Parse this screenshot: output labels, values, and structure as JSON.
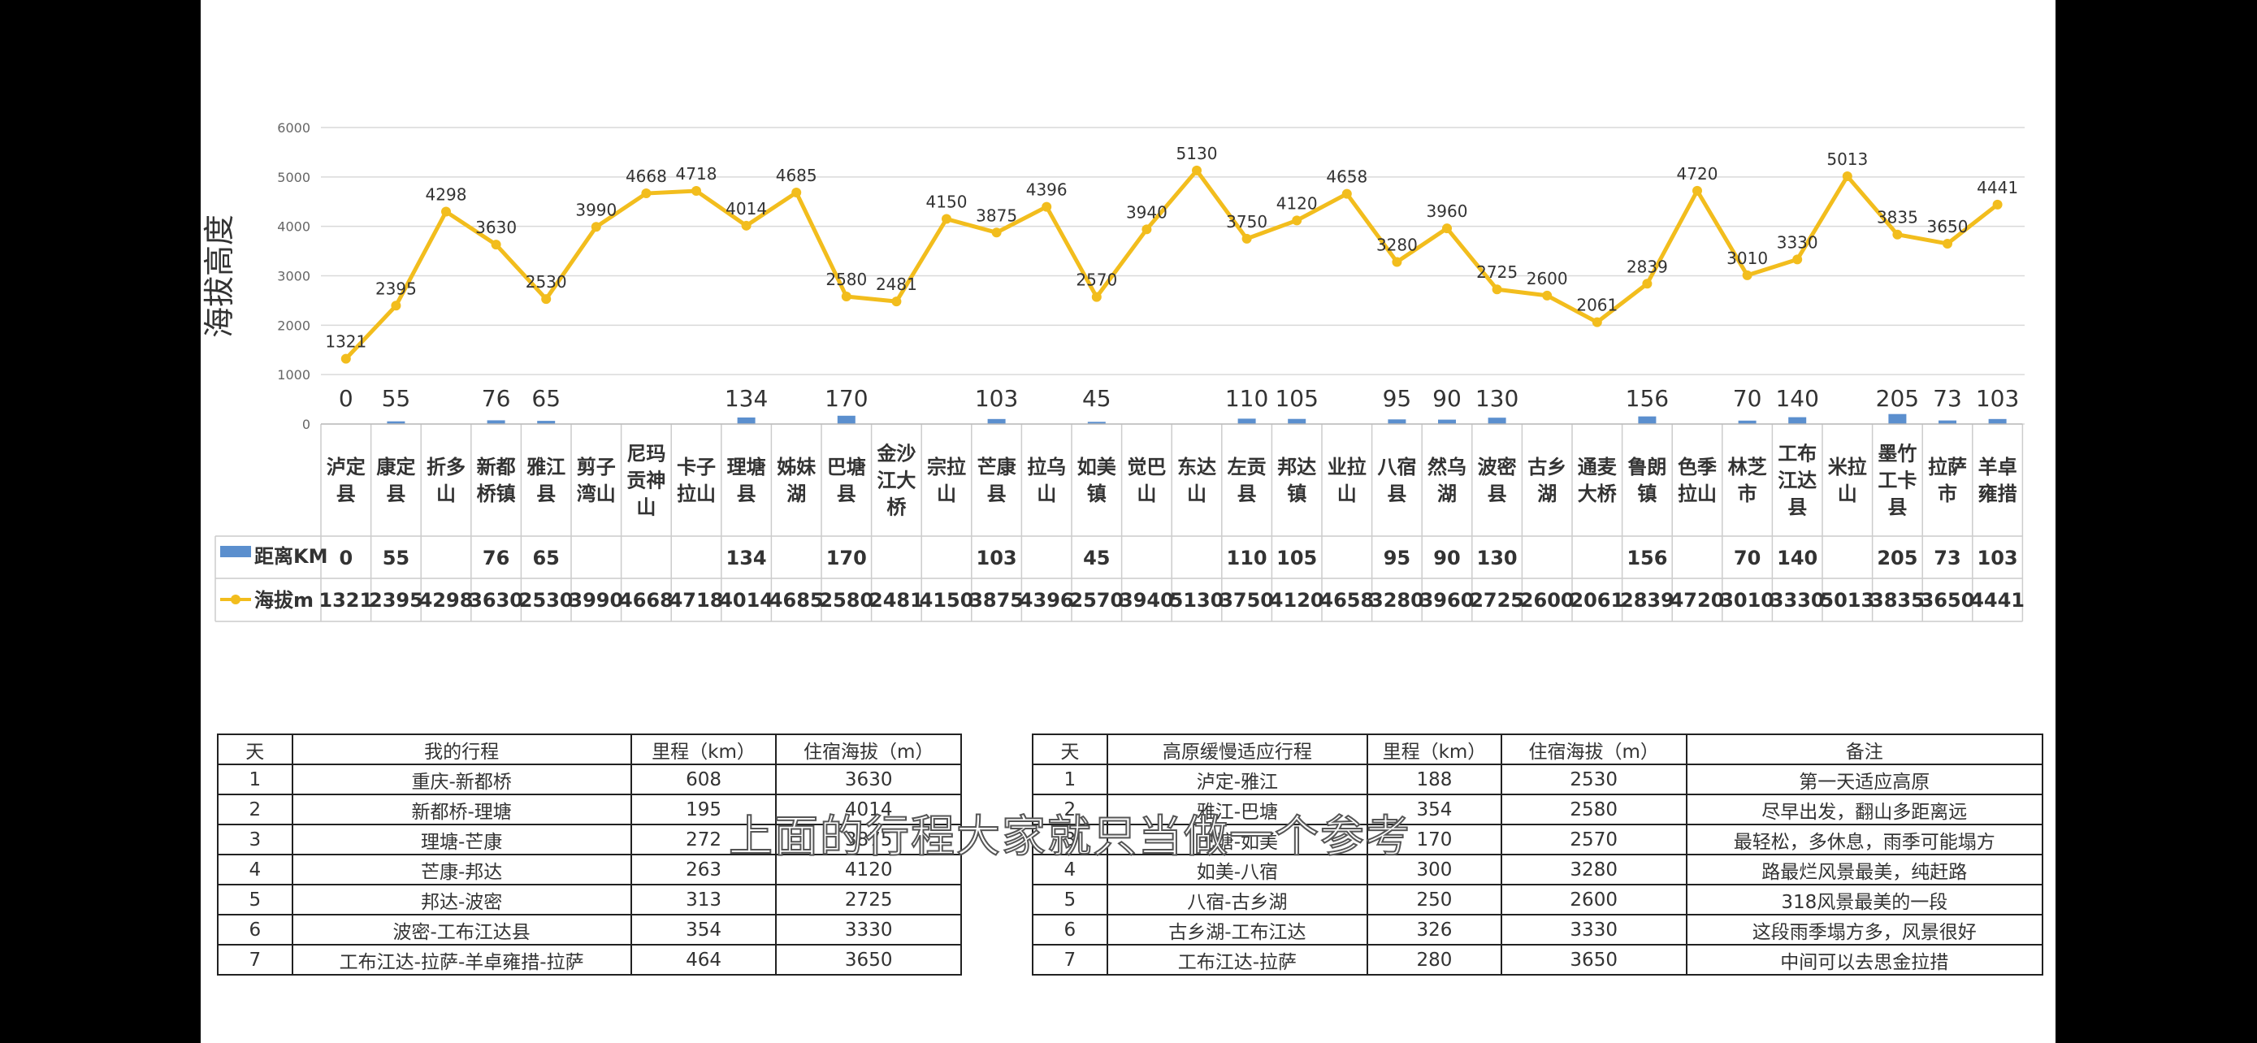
{
  "colors": {
    "line": "#f2bd1d",
    "bar": "#5b8fce",
    "grid": "#d9d9d9",
    "text": "#333333"
  },
  "chart_data": {
    "type": "line",
    "ylabel": "海拔高度",
    "ylim": [
      0,
      6000
    ],
    "yticks": [
      "0",
      "1000",
      "2000",
      "3000",
      "4000",
      "5000",
      "6000"
    ],
    "grid": true,
    "legend_placement": "table-left",
    "categories": [
      [
        "泸定",
        "县"
      ],
      [
        "康定",
        "县"
      ],
      [
        "折多",
        "山"
      ],
      [
        "新都",
        "桥镇"
      ],
      [
        "雅江",
        "县"
      ],
      [
        "剪子",
        "湾山"
      ],
      [
        "尼玛",
        "贡神",
        "山"
      ],
      [
        "卡子",
        "拉山"
      ],
      [
        "理塘",
        "县"
      ],
      [
        "姊妹",
        "湖"
      ],
      [
        "巴塘",
        "县"
      ],
      [
        "金沙",
        "江大",
        "桥"
      ],
      [
        "宗拉",
        "山"
      ],
      [
        "芒康",
        "县"
      ],
      [
        "拉乌",
        "山"
      ],
      [
        "如美",
        "镇"
      ],
      [
        "觉巴",
        "山"
      ],
      [
        "东达",
        "山"
      ],
      [
        "左贡",
        "县"
      ],
      [
        "邦达",
        "镇"
      ],
      [
        "业拉",
        "山"
      ],
      [
        "八宿",
        "县"
      ],
      [
        "然乌",
        "湖"
      ],
      [
        "波密",
        "县"
      ],
      [
        "古乡",
        "湖"
      ],
      [
        "通麦",
        "大桥"
      ],
      [
        "鲁朗",
        "镇"
      ],
      [
        "色季",
        "拉山"
      ],
      [
        "林芝",
        "市"
      ],
      [
        "工布",
        "江达",
        "县"
      ],
      [
        "米拉",
        "山"
      ],
      [
        "墨竹",
        "工卡",
        "县"
      ],
      [
        "拉萨",
        "市"
      ],
      [
        "羊卓",
        "雍措"
      ]
    ],
    "series": [
      {
        "name": "距离KM",
        "type": "bar",
        "values": [
          0,
          55,
          null,
          76,
          65,
          null,
          null,
          null,
          134,
          null,
          170,
          null,
          null,
          103,
          null,
          45,
          null,
          null,
          110,
          105,
          null,
          95,
          90,
          130,
          null,
          null,
          156,
          null,
          70,
          140,
          null,
          205,
          73,
          103
        ],
        "labels": [
          "0",
          "55",
          "",
          "76",
          "65",
          "",
          "",
          "",
          "134",
          "",
          "170",
          "",
          "",
          "103",
          "",
          "45",
          "",
          "",
          "110",
          "105",
          "",
          "95",
          "90",
          "130",
          "",
          "",
          "156",
          "",
          "70",
          "140",
          "",
          "205",
          "73",
          "103"
        ]
      },
      {
        "name": "海拔m",
        "type": "line",
        "values": [
          1321,
          2395,
          4298,
          3630,
          2530,
          3990,
          4668,
          4718,
          4014,
          4685,
          2580,
          2481,
          4150,
          3875,
          4396,
          2570,
          3940,
          5130,
          3750,
          4120,
          4658,
          3280,
          3960,
          2725,
          2600,
          2061,
          2839,
          4720,
          3010,
          3330,
          5013,
          3835,
          3650,
          4441
        ],
        "labels": [
          "1321",
          "2395",
          "4298",
          "3630",
          "2530",
          "3990",
          "4668",
          "4718",
          "4014",
          "4685",
          "2580",
          "2481",
          "4150",
          "3875",
          "4396",
          "2570",
          "3940",
          "5130",
          "3750",
          "4120",
          "4658",
          "3280",
          "3960",
          "2725",
          "2600",
          "2061",
          "2839",
          "4720",
          "3010",
          "3330",
          "5013",
          "3835",
          "3650",
          "4441"
        ]
      }
    ]
  },
  "table_left": {
    "headers": [
      "天",
      "我的行程",
      "里程（km）",
      "住宿海拔（m）"
    ],
    "rows": [
      [
        "1",
        "重庆-新都桥",
        "608",
        "3630"
      ],
      [
        "2",
        "新都桥-理塘",
        "195",
        "4014"
      ],
      [
        "3",
        "理塘-芒康",
        "272",
        "3875"
      ],
      [
        "4",
        "芒康-邦达",
        "263",
        "4120"
      ],
      [
        "5",
        "邦达-波密",
        "313",
        "2725"
      ],
      [
        "6",
        "波密-工布江达县",
        "354",
        "3330"
      ],
      [
        "7",
        "工布江达-拉萨-羊卓雍措-拉萨",
        "464",
        "3650"
      ]
    ]
  },
  "table_right": {
    "headers": [
      "天",
      "高原缓慢适应行程",
      "里程（km）",
      "住宿海拔（m）",
      "备注"
    ],
    "rows": [
      [
        "1",
        "泸定-雅江",
        "188",
        "2530",
        "第一天适应高原"
      ],
      [
        "2",
        "雅江-巴塘",
        "354",
        "2580",
        "尽早出发，翻山多距离远"
      ],
      [
        "3",
        "巴塘-如美",
        "170",
        "2570",
        "最轻松，多休息，雨季可能塌方"
      ],
      [
        "4",
        "如美-八宿",
        "300",
        "3280",
        "路最烂风景最美，纯赶路"
      ],
      [
        "5",
        "八宿-古乡湖",
        "250",
        "2600",
        "318风景最美的一段"
      ],
      [
        "6",
        "古乡湖-工布江达",
        "326",
        "3330",
        "这段雨季塌方多，风景很好"
      ],
      [
        "7",
        "工布江达-拉萨",
        "280",
        "3650",
        "中间可以去思金拉措"
      ]
    ]
  },
  "overlay_caption": "上面的行程大家就只当做一个参考"
}
